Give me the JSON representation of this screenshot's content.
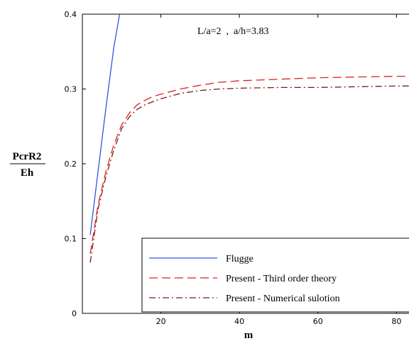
{
  "chart_data": {
    "type": "line",
    "title": "",
    "annotation": "L/a=2  ,  a/h=3.83",
    "xlabel": "m",
    "ylabel_numerator": "PcrR2",
    "ylabel_denominator": "Eh",
    "xlim": [
      0,
      85
    ],
    "ylim": [
      0,
      0.4
    ],
    "xticks": [
      20,
      40,
      60,
      80
    ],
    "xtick_labels": [
      "20",
      "40",
      "60",
      "80"
    ],
    "yticks": [
      0,
      0.1,
      0.2,
      0.3,
      0.4
    ],
    "ytick_labels": [
      "0",
      "0.1",
      "0.2",
      "0.3",
      "0.4"
    ],
    "grid": false,
    "legend_position": "bottom-right",
    "series": [
      {
        "name": "Flugge",
        "color": "#3355dd",
        "style": "solid",
        "points": [
          [
            2,
            0.105
          ],
          [
            4,
            0.19
          ],
          [
            6,
            0.275
          ],
          [
            8,
            0.355
          ],
          [
            9.5,
            0.4
          ]
        ]
      },
      {
        "name": "Present - Third order theory",
        "color": "#dd2222",
        "style": "dashed",
        "points": [
          [
            2,
            0.08
          ],
          [
            4,
            0.145
          ],
          [
            6,
            0.19
          ],
          [
            8,
            0.225
          ],
          [
            10,
            0.252
          ],
          [
            12,
            0.268
          ],
          [
            14,
            0.279
          ],
          [
            16,
            0.285
          ],
          [
            18,
            0.29
          ],
          [
            20,
            0.293
          ],
          [
            25,
            0.3
          ],
          [
            30,
            0.305
          ],
          [
            35,
            0.309
          ],
          [
            40,
            0.311
          ],
          [
            50,
            0.313
          ],
          [
            60,
            0.315
          ],
          [
            70,
            0.316
          ],
          [
            80,
            0.317
          ],
          [
            85,
            0.317
          ]
        ]
      },
      {
        "name": "Present - Numerical sulotion",
        "color": "#7a1a1a",
        "style": "dashdot",
        "points": [
          [
            2,
            0.068
          ],
          [
            4,
            0.14
          ],
          [
            6,
            0.183
          ],
          [
            8,
            0.218
          ],
          [
            10,
            0.247
          ],
          [
            12,
            0.263
          ],
          [
            14,
            0.273
          ],
          [
            16,
            0.279
          ],
          [
            18,
            0.283
          ],
          [
            20,
            0.287
          ],
          [
            25,
            0.294
          ],
          [
            30,
            0.298
          ],
          [
            35,
            0.3
          ],
          [
            40,
            0.301
          ],
          [
            50,
            0.302
          ],
          [
            60,
            0.302
          ],
          [
            70,
            0.303
          ],
          [
            80,
            0.304
          ],
          [
            85,
            0.304
          ]
        ]
      }
    ]
  }
}
